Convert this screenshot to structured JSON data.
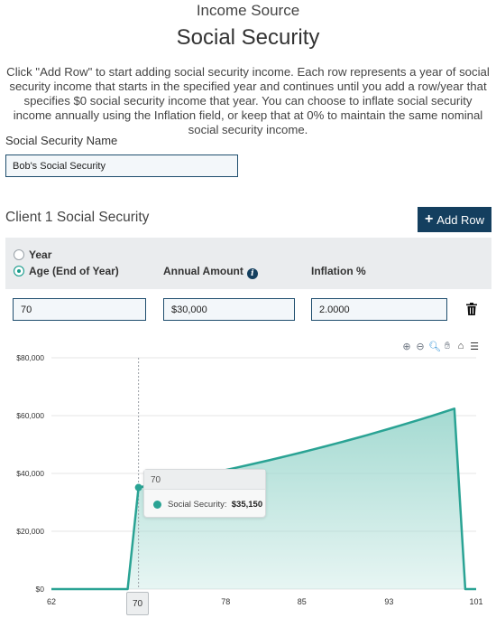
{
  "header": {
    "subtitle": "Income Source",
    "title": "Social Security"
  },
  "intro_text": "Click \"Add Row\" to start adding social security income. Each row represents a year of social security income that starts in the specified year and continues until you add a row/year that specifies $0 social security income that year. You can choose to inflate social security income annually using the Inflation field, or keep that at 0% to maintain the same nominal social security income.",
  "name_field": {
    "label": "Social Security Name",
    "value": "Bob's Social Security"
  },
  "section": {
    "title": "Client 1 Social Security",
    "add_row_label": "Add Row"
  },
  "grid": {
    "mode_options": [
      {
        "label": "Year",
        "selected": false
      },
      {
        "label": "Age (End of Year)",
        "selected": true
      }
    ],
    "columns": {
      "amount": "Annual Amount",
      "inflation": "Inflation %"
    },
    "rows": [
      {
        "age": "70",
        "amount": "$30,000",
        "inflation": "2.0000"
      }
    ]
  },
  "toolbar_icons": [
    "zoom-in-icon",
    "zoom-out-icon",
    "magnify-icon",
    "pan-hand-icon",
    "home-icon",
    "menu-icon"
  ],
  "colors": {
    "accent": "#143f5f",
    "series": "#2aa394",
    "series_fill": "#9fd8cf"
  },
  "chart_data": {
    "type": "area",
    "series": [
      {
        "name": "Social Security",
        "x": [
          62,
          69,
          70,
          71,
          72,
          73,
          74,
          75,
          76,
          77,
          78,
          79,
          80,
          81,
          82,
          83,
          84,
          85,
          86,
          87,
          88,
          89,
          90,
          91,
          92,
          93,
          94,
          95,
          96,
          97,
          98,
          99,
          100,
          101
        ],
        "values": [
          0,
          0,
          35150,
          35853,
          36570,
          37301,
          38047,
          38808,
          39584,
          40376,
          41184,
          42007,
          42847,
          43704,
          44578,
          45470,
          46379,
          47307,
          48253,
          49218,
          50203,
          51207,
          52231,
          53275,
          54341,
          55428,
          56536,
          57667,
          58820,
          59997,
          61197,
          62421,
          0,
          0
        ]
      }
    ],
    "xlim": [
      62,
      101
    ],
    "ylim": [
      0,
      80000
    ],
    "x_ticks": [
      "62",
      "70",
      "78",
      "85",
      "93",
      "101"
    ],
    "y_ticks": [
      "$0",
      "$20,000",
      "$40,000",
      "$60,000",
      "$80,000"
    ],
    "grid": true,
    "tooltip": {
      "header": "70",
      "series": "Social Security:",
      "value": "$35,150"
    },
    "crosshair_label": "70"
  }
}
